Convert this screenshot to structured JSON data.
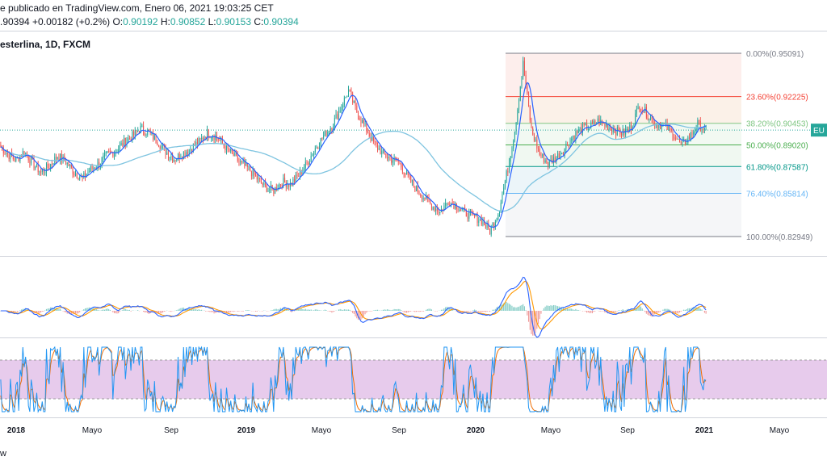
{
  "header": {
    "line1": "e publicado en TradingView.com, Enero 06, 2021 19:03:25 CET",
    "close_val": ".90394",
    "change": "+0.00182 (+0.2%)",
    "o_key": "O:",
    "o_val": "0.90192",
    "h_key": "H:",
    "h_val": "0.90852",
    "l_key": "L:",
    "l_val": "0.90153",
    "c_key": "C:",
    "c_val": "0.90394"
  },
  "symbol_title": "esterlina, 1D, FXCM",
  "price_tag": "EU",
  "footer": "w",
  "colors": {
    "up": "#26a69a",
    "down": "#ef5350",
    "ma": "#7ec4e0",
    "macd": "#2962ff",
    "signal": "#ff9800",
    "stoch_k": "#2196f3",
    "stoch_d": "#ef6c00",
    "stoch_band": "#e1bee7"
  },
  "chart_data": {
    "type": "line",
    "x_tick_labels": [
      "2018",
      "Mayo",
      "Sep",
      "2019",
      "Mayo",
      "Sep",
      "2020",
      "Mayo",
      "Sep",
      "2021",
      "Mayo"
    ],
    "fibonacci": [
      {
        "label": "0.00%(0.95091)",
        "value": 0.95091,
        "color": "#787b86"
      },
      {
        "label": "23.60%(0.92225)",
        "value": 0.92225,
        "color": "#f44336"
      },
      {
        "label": "38.20%(0.90453)",
        "value": 0.90453,
        "color": "#81c784"
      },
      {
        "label": "50.00%(0.89020)",
        "value": 0.8902,
        "color": "#4caf50"
      },
      {
        "label": "61.80%(0.87587)",
        "value": 0.87587,
        "color": "#009688"
      },
      {
        "label": "76.40%(0.85814)",
        "value": 0.85814,
        "color": "#64b5f6"
      },
      {
        "label": "100.00%(0.82949)",
        "value": 0.82949,
        "color": "#787b86"
      }
    ],
    "series": [
      {
        "values": [
          0.89,
          0.884,
          0.88,
          0.886,
          0.878,
          0.872,
          0.876,
          0.883,
          0.879,
          0.872,
          0.868,
          0.874,
          0.878,
          0.884,
          0.886,
          0.892,
          0.896,
          0.901,
          0.898,
          0.893,
          0.886,
          0.881,
          0.884,
          0.888,
          0.892,
          0.898,
          0.896,
          0.89,
          0.884,
          0.878,
          0.874,
          0.868,
          0.862,
          0.86,
          0.866,
          0.864,
          0.87,
          0.878,
          0.888,
          0.896,
          0.903,
          0.914,
          0.926,
          0.912,
          0.902,
          0.892,
          0.885,
          0.881,
          0.879,
          0.87,
          0.862,
          0.856,
          0.85,
          0.846,
          0.853,
          0.85,
          0.845,
          0.843,
          0.84,
          0.833,
          0.845,
          0.87,
          0.9,
          0.944,
          0.9,
          0.884,
          0.878,
          0.882,
          0.888,
          0.896,
          0.901,
          0.902,
          0.906,
          0.903,
          0.9,
          0.898,
          0.902,
          0.917,
          0.91,
          0.904,
          0.903,
          0.898,
          0.89,
          0.895,
          0.904,
          0.9
        ]
      }
    ]
  }
}
